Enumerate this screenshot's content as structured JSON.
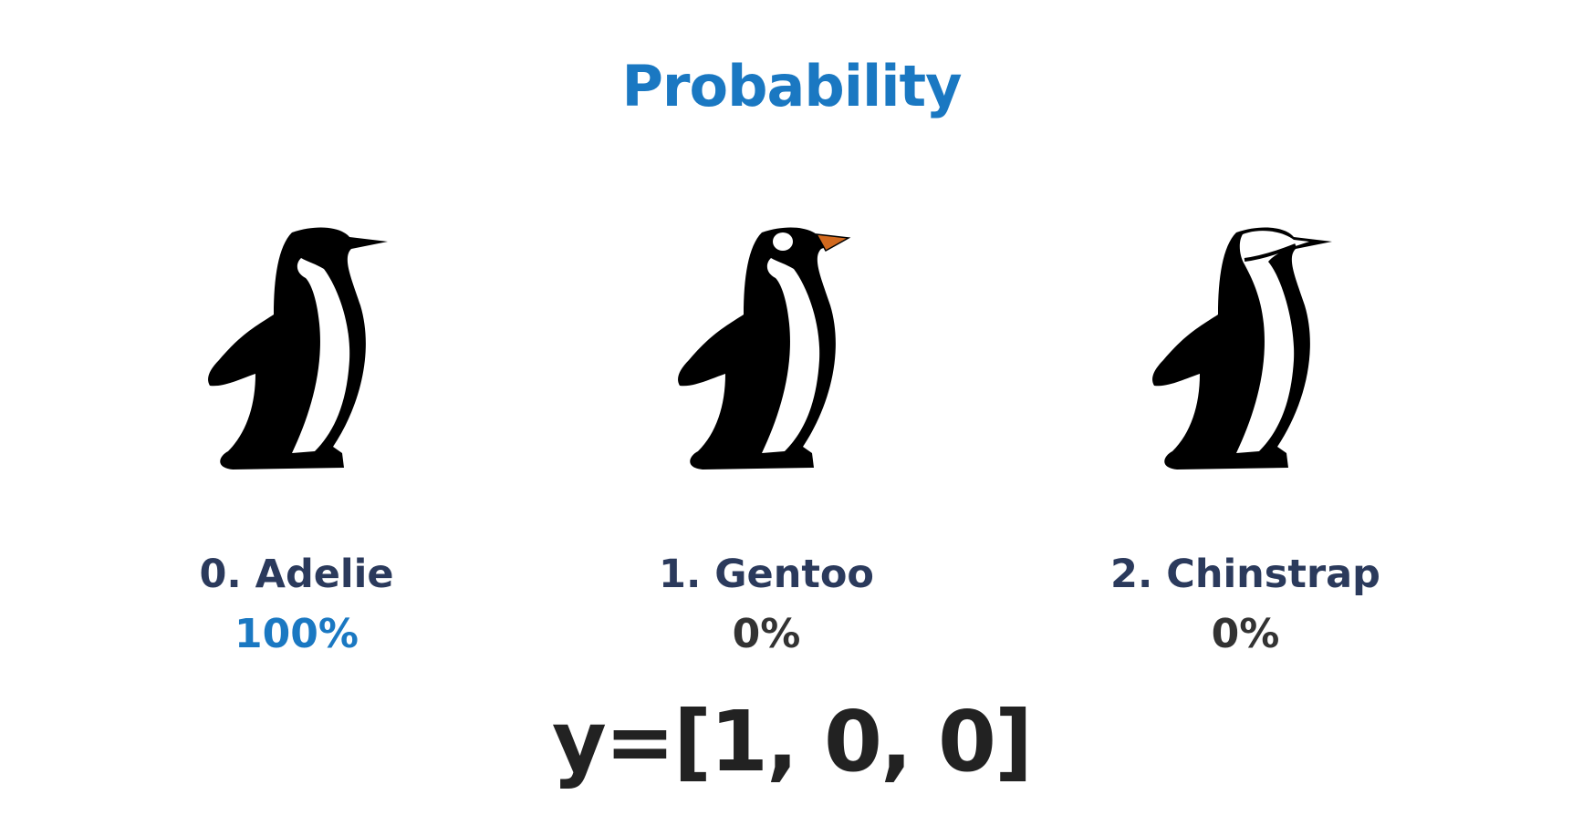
{
  "title": "Probability",
  "classes": [
    {
      "label": "0. Adelie",
      "probability": "100%",
      "prob_color": "#1a78c2",
      "icon": "adelie-penguin-icon"
    },
    {
      "label": "1. Gentoo",
      "probability": "0%",
      "prob_color": "#333333",
      "icon": "gentoo-penguin-icon"
    },
    {
      "label": "2. Chinstrap",
      "probability": "0%",
      "prob_color": "#333333",
      "icon": "chinstrap-penguin-icon"
    }
  ],
  "equation": "y=[1, 0, 0]",
  "colors": {
    "accent": "#1a78c2",
    "label": "#2b3a5c",
    "beak_gentoo": "#d2691e"
  }
}
